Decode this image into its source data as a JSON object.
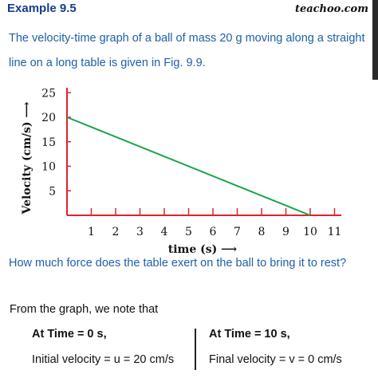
{
  "header": {
    "title": "Example 9.5",
    "brand": "teachoo.com"
  },
  "question": {
    "text": "The velocity-time graph of a ball of mass 20 g moving along a straight line on a long table is given in Fig. 9.9.",
    "text2": "How much force does the table exert on the ball to bring it to rest?"
  },
  "colors": {
    "question": "#1f5fa8",
    "axis": "#e0232a",
    "line": "#1aa34a",
    "title": "#1a3a8a"
  },
  "chart_data": {
    "type": "line",
    "title": "",
    "xlabel": "time (s) ⟶",
    "ylabel": "Velocity (cm/s) ⟶",
    "xlim": [
      0,
      11
    ],
    "ylim": [
      0,
      25
    ],
    "x_ticks": [
      1,
      2,
      3,
      4,
      5,
      6,
      7,
      8,
      9,
      10,
      11
    ],
    "y_ticks": [
      5,
      10,
      15,
      20,
      25
    ],
    "grid": false,
    "series": [
      {
        "x": [
          0,
          10
        ],
        "y": [
          20,
          0
        ]
      }
    ]
  },
  "solution": {
    "note": "From the graph,  we note that",
    "left": {
      "heading": "At Time = 0 s,",
      "value": "Initial velocity = u = 20 cm/s"
    },
    "right": {
      "heading": "At Time = 10 s,",
      "value": "Final velocity = v = 0 cm/s"
    }
  }
}
